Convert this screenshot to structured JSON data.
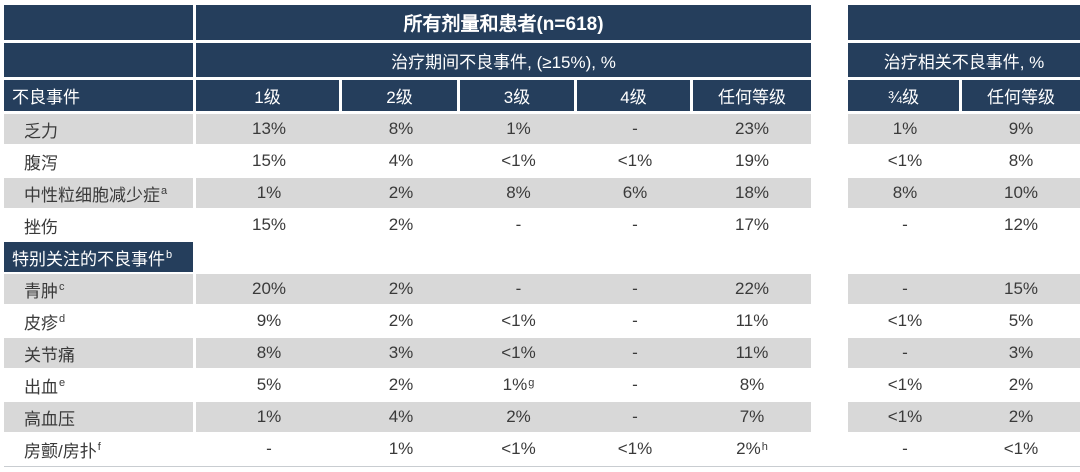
{
  "colors": {
    "header_navy": "#253E5C",
    "row_gray": "#D8D8D8",
    "row_white": "#FFFFFF",
    "text_dark": "#3a3a3a",
    "header_text": "#FFFFFF"
  },
  "chart_data": {
    "type": "table",
    "title": "所有剂量和患者(n=618)",
    "left_group_header": "治疗期间不良事件, (≥15%), %",
    "right_group_header": "治疗相关不良事件, %",
    "event_column_header": "不良事件",
    "grade_column_headers": [
      "1级",
      "2级",
      "3级",
      "4级",
      "任何等级"
    ],
    "related_column_headers": [
      "¾级",
      "任何等级"
    ],
    "rows": [
      {
        "kind": "data",
        "shaded": true,
        "label": "乏力",
        "label_sup": "",
        "grades": [
          "13%",
          "8%",
          "1%",
          "-",
          "23%"
        ],
        "related": [
          "1%",
          "9%"
        ]
      },
      {
        "kind": "data",
        "shaded": false,
        "label": "腹泻",
        "label_sup": "",
        "grades": [
          "15%",
          "4%",
          "<1%",
          "<1%",
          "19%"
        ],
        "related": [
          "<1%",
          "8%"
        ]
      },
      {
        "kind": "data",
        "shaded": true,
        "label": "中性粒细胞减少症",
        "label_sup": "a",
        "grades": [
          "1%",
          "2%",
          "8%",
          "6%",
          "18%"
        ],
        "related": [
          "8%",
          "10%"
        ]
      },
      {
        "kind": "data",
        "shaded": false,
        "label": "挫伤",
        "label_sup": "",
        "grades": [
          "15%",
          "2%",
          "-",
          "-",
          "17%"
        ],
        "related": [
          "-",
          "12%"
        ]
      },
      {
        "kind": "section",
        "label": "特别关注的不良事件",
        "label_sup": "b"
      },
      {
        "kind": "data",
        "shaded": true,
        "label": "青肿",
        "label_sup": "c",
        "grades": [
          "20%",
          "2%",
          "-",
          "-",
          "22%"
        ],
        "related": [
          "-",
          "15%"
        ]
      },
      {
        "kind": "data",
        "shaded": false,
        "label": "皮疹",
        "label_sup": "d",
        "grades": [
          "9%",
          "2%",
          "<1%",
          "-",
          "11%"
        ],
        "related": [
          "<1%",
          "5%"
        ]
      },
      {
        "kind": "data",
        "shaded": true,
        "label": "关节痛",
        "label_sup": "",
        "grades": [
          "8%",
          "3%",
          "<1%",
          "-",
          "11%"
        ],
        "related": [
          "-",
          "3%"
        ]
      },
      {
        "kind": "data",
        "shaded": false,
        "label": "出血",
        "label_sup": "e",
        "grades": [
          "5%",
          "2%",
          {
            "v": "1%",
            "sup": "g"
          },
          "-",
          "8%"
        ],
        "related": [
          "<1%",
          "2%"
        ]
      },
      {
        "kind": "data",
        "shaded": true,
        "label": "高血压",
        "label_sup": "",
        "grades": [
          "1%",
          "4%",
          "2%",
          "-",
          "7%"
        ],
        "related": [
          "<1%",
          "2%"
        ]
      },
      {
        "kind": "data",
        "shaded": false,
        "label": "房颤/房扑",
        "label_sup": "f",
        "grades": [
          "-",
          "1%",
          "<1%",
          "<1%",
          {
            "v": "2%",
            "sup": "h"
          }
        ],
        "related": [
          "-",
          "<1%"
        ]
      }
    ]
  }
}
